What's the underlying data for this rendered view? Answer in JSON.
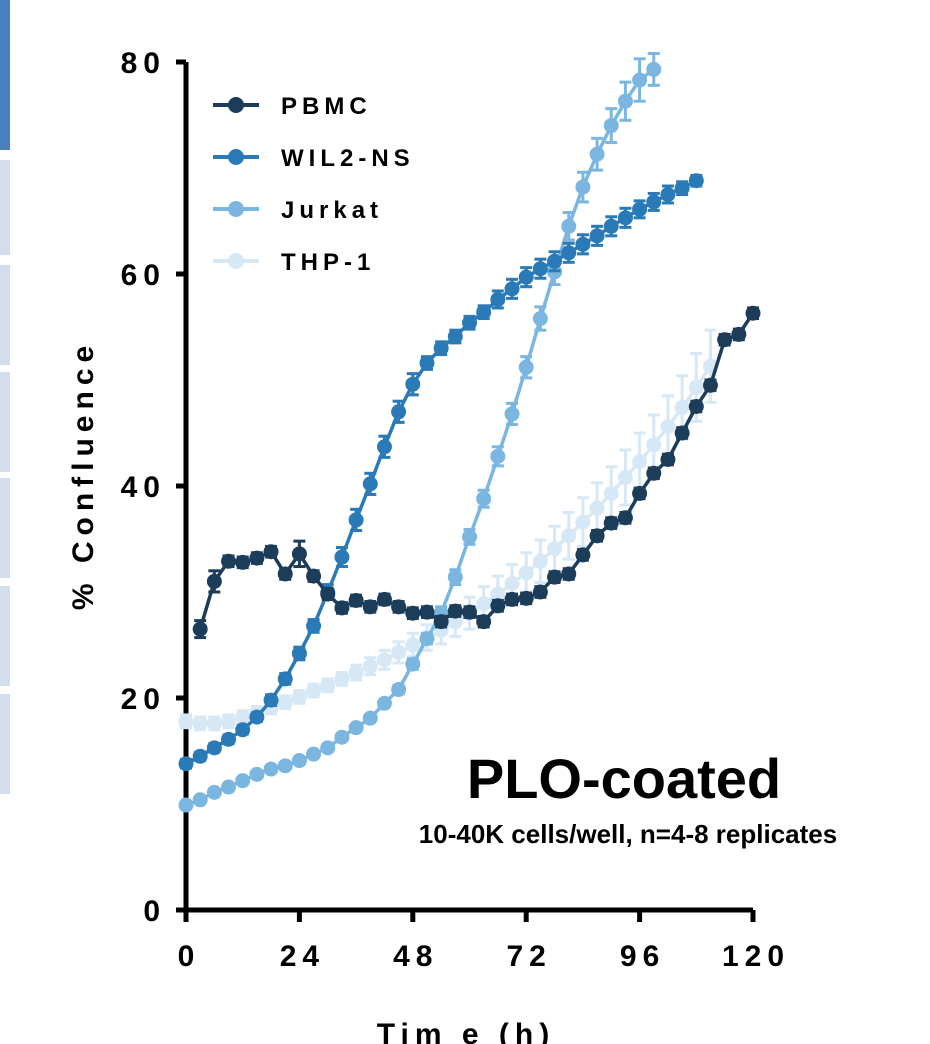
{
  "chart_data": {
    "type": "line",
    "title": "",
    "xlabel": "Tim e (h)",
    "ylabel": "% Confluence",
    "xlim": [
      0,
      120
    ],
    "ylim": [
      0,
      80
    ],
    "x_ticks": [
      "0",
      "24",
      "48",
      "72",
      "96",
      "120"
    ],
    "y_ticks": [
      "0",
      "20",
      "40",
      "60",
      "80"
    ],
    "grid": false,
    "legend_position": "top-left",
    "annotations": {
      "main": "PLO-coated",
      "sub": "10-40K cells/well, n=4-8 replicates"
    },
    "series": [
      {
        "name": "PBMC",
        "color": "#1c3d5a",
        "x": [
          3,
          6,
          9,
          12,
          15,
          18,
          21,
          24,
          27,
          30,
          33,
          36,
          39,
          42,
          45,
          48,
          51,
          54,
          57,
          60,
          63,
          66,
          69,
          72,
          75,
          78,
          81,
          84,
          87,
          90,
          93,
          96,
          99,
          102,
          105,
          108,
          111,
          114,
          117,
          120
        ],
        "y": [
          26.5,
          31,
          32.9,
          32.8,
          33.2,
          33.8,
          31.7,
          33.6,
          31.5,
          29.8,
          28.5,
          29.2,
          28.6,
          29.3,
          28.6,
          28.0,
          28.1,
          27.2,
          28.2,
          28.1,
          27.2,
          28.7,
          29.3,
          29.4,
          30.0,
          31.4,
          31.7,
          33.5,
          35.3,
          36.5,
          37.0,
          39.3,
          41.2,
          42.5,
          45.0,
          47.5,
          49.5,
          53.8,
          54.3,
          56.3
        ],
        "err": [
          0.8,
          1.0,
          0.5,
          0.5,
          0.5,
          0.5,
          0.5,
          1.2,
          0.5,
          0.5,
          0.5,
          0.5,
          0.5,
          0.5,
          0.5,
          0.5,
          0.5,
          0.5,
          0.5,
          0.5,
          0.5,
          0.5,
          0.5,
          0.5,
          0.5,
          0.5,
          0.5,
          0.5,
          0.5,
          0.5,
          0.5,
          0.5,
          0.5,
          0.5,
          0.5,
          0.5,
          0.5,
          0.5,
          0.5,
          0.5
        ]
      },
      {
        "name": "WIL2-NS",
        "color": "#2a7ab8",
        "x": [
          0,
          3,
          6,
          9,
          12,
          15,
          18,
          21,
          24,
          27,
          30,
          33,
          36,
          39,
          42,
          45,
          48,
          51,
          54,
          57,
          60,
          63,
          66,
          69,
          72,
          75,
          78,
          81,
          84,
          87,
          90,
          93,
          96,
          99,
          102,
          105,
          108
        ],
        "y": [
          13.8,
          14.5,
          15.3,
          16.1,
          17.0,
          18.2,
          19.8,
          21.8,
          24.2,
          26.8,
          30.0,
          33.3,
          36.8,
          40.2,
          43.7,
          47.0,
          49.6,
          51.6,
          53.0,
          54.1,
          55.4,
          56.4,
          57.6,
          58.6,
          59.7,
          60.5,
          61.2,
          62.0,
          62.8,
          63.6,
          64.5,
          65.3,
          66.1,
          66.8,
          67.5,
          68.1,
          68.8
        ],
        "err": [
          0.4,
          0.4,
          0.4,
          0.4,
          0.4,
          0.4,
          0.5,
          0.5,
          0.6,
          0.6,
          0.7,
          0.9,
          1.0,
          1.0,
          1.0,
          1.0,
          1.0,
          0.6,
          0.6,
          0.6,
          0.6,
          0.6,
          0.8,
          0.9,
          0.9,
          0.9,
          0.9,
          0.9,
          0.9,
          0.9,
          0.9,
          0.9,
          0.8,
          0.8,
          0.8,
          0.6,
          0.5
        ]
      },
      {
        "name": "Jurkat",
        "color": "#7ab6e0",
        "x": [
          0,
          3,
          6,
          9,
          12,
          15,
          18,
          21,
          24,
          27,
          30,
          33,
          36,
          39,
          42,
          45,
          48,
          51,
          54,
          57,
          60,
          63,
          66,
          69,
          72,
          75,
          78,
          81,
          84,
          87,
          90,
          93,
          96,
          99
        ],
        "y": [
          9.9,
          10.4,
          11.1,
          11.6,
          12.2,
          12.8,
          13.3,
          13.6,
          14.1,
          14.7,
          15.3,
          16.3,
          17.2,
          18.1,
          19.5,
          20.8,
          23.2,
          25.6,
          28.0,
          31.4,
          35.2,
          38.8,
          42.8,
          46.8,
          51.2,
          55.8,
          60.2,
          64.5,
          68.2,
          71.3,
          74.0,
          76.3,
          78.3,
          79.3
        ],
        "err": [
          0.3,
          0.3,
          0.3,
          0.3,
          0.3,
          0.3,
          0.3,
          0.3,
          0.3,
          0.3,
          0.3,
          0.3,
          0.3,
          0.3,
          0.3,
          0.4,
          0.5,
          0.5,
          0.6,
          0.7,
          0.7,
          0.8,
          0.9,
          1.0,
          1.0,
          1.1,
          1.2,
          1.3,
          1.4,
          1.5,
          1.6,
          1.8,
          2.0,
          1.5
        ]
      },
      {
        "name": "THP-1",
        "color": "#d6e8f6",
        "x": [
          0,
          3,
          6,
          9,
          12,
          15,
          18,
          21,
          24,
          27,
          30,
          33,
          36,
          39,
          42,
          45,
          48,
          51,
          54,
          57,
          60,
          63,
          66,
          69,
          72,
          75,
          78,
          81,
          84,
          87,
          90,
          93,
          96,
          99,
          102,
          105,
          108,
          111
        ],
        "y": [
          17.8,
          17.6,
          17.6,
          17.8,
          18.2,
          18.6,
          19.1,
          19.6,
          20.1,
          20.7,
          21.2,
          21.8,
          22.4,
          23.0,
          23.6,
          24.3,
          25.0,
          25.7,
          26.4,
          27.2,
          28.0,
          28.9,
          29.8,
          30.8,
          31.8,
          32.9,
          34.1,
          35.3,
          36.6,
          37.9,
          39.3,
          40.8,
          42.3,
          43.9,
          45.6,
          47.4,
          49.3,
          51.3
        ],
        "err": [
          0.6,
          0.6,
          0.6,
          0.6,
          0.6,
          0.6,
          0.6,
          0.6,
          0.6,
          0.6,
          0.6,
          0.6,
          0.7,
          0.8,
          0.9,
          1.0,
          1.1,
          1.2,
          1.3,
          1.4,
          1.5,
          1.6,
          1.7,
          1.8,
          1.9,
          2.0,
          2.1,
          2.2,
          2.3,
          2.4,
          2.5,
          2.6,
          2.7,
          2.8,
          2.9,
          3.0,
          3.2,
          3.4
        ]
      }
    ]
  }
}
